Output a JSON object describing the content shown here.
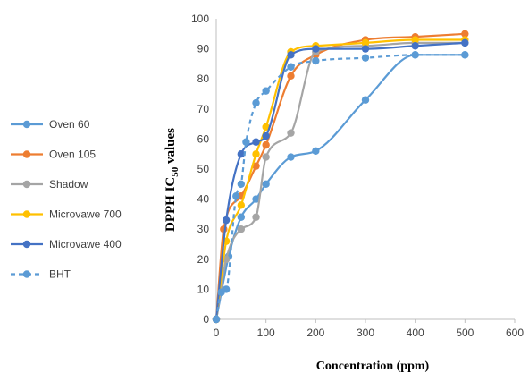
{
  "chart_data": {
    "type": "line",
    "title": "",
    "xlabel": "Concentration (ppm)",
    "ylabel": {
      "prefix": "DPPH IC",
      "subscript": "50",
      "suffix": " values"
    },
    "xlim": [
      0,
      600
    ],
    "ylim": [
      0,
      100
    ],
    "xticks": [
      0,
      100,
      200,
      300,
      400,
      500,
      600
    ],
    "yticks": [
      0,
      10,
      20,
      30,
      40,
      50,
      60,
      70,
      80,
      90,
      100
    ],
    "grid": false,
    "legend": "left",
    "series": [
      {
        "name": "Oven 60",
        "color": "#5B9BD5",
        "dashed": false,
        "x": [
          0,
          25,
          50,
          80,
          100,
          150,
          200,
          300,
          400,
          500
        ],
        "y": [
          0,
          21,
          34,
          40,
          45,
          54,
          56,
          73,
          88,
          88
        ]
      },
      {
        "name": "Oven 105",
        "color": "#ED7D31",
        "dashed": false,
        "x": [
          0,
          15,
          50,
          80,
          100,
          150,
          200,
          300,
          400,
          500
        ],
        "y": [
          0,
          30,
          41,
          51,
          58,
          81,
          88,
          93,
          94,
          95
        ]
      },
      {
        "name": "Shadow",
        "color": "#A5A5A5",
        "dashed": false,
        "x": [
          0,
          20,
          50,
          80,
          100,
          150,
          200,
          300,
          400,
          500
        ],
        "y": [
          0,
          20,
          30,
          34,
          54,
          62,
          89,
          91,
          92,
          92
        ]
      },
      {
        "name": "Microvawe 700",
        "color": "#FFC000",
        "dashed": false,
        "x": [
          0,
          20,
          50,
          80,
          100,
          150,
          200,
          300,
          400,
          500
        ],
        "y": [
          0,
          26,
          38,
          55,
          64,
          89,
          91,
          92,
          93,
          93
        ]
      },
      {
        "name": "Microvawe 400",
        "color": "#4472C4",
        "dashed": false,
        "x": [
          0,
          20,
          50,
          80,
          100,
          150,
          200,
          300,
          400,
          500
        ],
        "y": [
          0,
          33,
          55,
          59,
          61,
          88,
          90,
          90,
          91,
          92
        ]
      },
      {
        "name": "BHT",
        "color": "#5B9BD5",
        "dashed": true,
        "x": [
          0,
          10,
          20,
          40,
          50,
          60,
          80,
          100,
          150,
          200,
          300,
          400,
          500
        ],
        "y": [
          0,
          9,
          10,
          41,
          45,
          59,
          72,
          76,
          84,
          86,
          87,
          88,
          88
        ]
      }
    ]
  }
}
